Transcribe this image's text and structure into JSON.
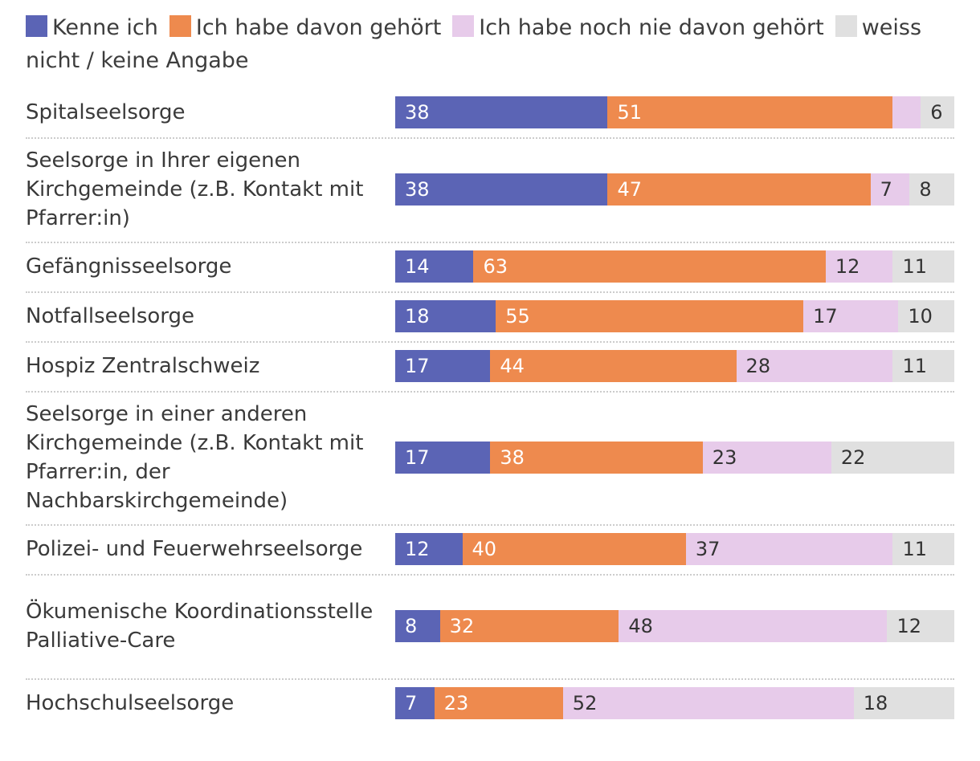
{
  "chart_data": {
    "type": "bar",
    "orientation": "horizontal",
    "stacked": true,
    "unit": "percent",
    "legend_position": "top",
    "legend": [
      {
        "name": "Kenne ich",
        "color": "#5b64b5"
      },
      {
        "name": "Ich habe davon gehört",
        "color": "#ee8a4e"
      },
      {
        "name": "Ich habe noch nie davon gehört",
        "color": "#e7cbea"
      },
      {
        "name": "weiss nicht / keine Angabe",
        "color": "#e0e0e0"
      }
    ],
    "categories": [
      "Spitalseelsorge",
      "Seelsorge in Ihrer eigenen Kirchgemeinde (z.B. Kontakt mit Pfarrer:in)",
      "Gefängnisseelsorge",
      "Notfallseelsorge",
      "Hospiz Zentralschweiz",
      "Seelsorge in einer anderen Kirchgemeinde (z.B. Kontakt mit Pfarrer:in, der Nachbarskirchgemeinde)",
      "Polizei- und Feuerwehrseelsorge",
      "Ökumenische Koordinationsstelle Palliative-Care",
      "Hochschulseelsorge"
    ],
    "series": [
      {
        "name": "Kenne ich",
        "values": [
          38,
          38,
          14,
          18,
          17,
          17,
          12,
          8,
          7
        ]
      },
      {
        "name": "Ich habe davon gehört",
        "values": [
          51,
          47,
          63,
          55,
          44,
          38,
          40,
          32,
          23
        ]
      },
      {
        "name": "Ich habe noch nie davon gehört",
        "values": [
          5,
          7,
          12,
          17,
          28,
          23,
          37,
          48,
          52
        ]
      },
      {
        "name": "weiss nicht / keine Angabe",
        "values": [
          6,
          8,
          11,
          10,
          11,
          22,
          11,
          12,
          18
        ]
      }
    ],
    "value_labels": [
      [
        "38",
        "51",
        "",
        "6"
      ],
      [
        "38",
        "47",
        "7",
        "8"
      ],
      [
        "14",
        "63",
        "12",
        "11"
      ],
      [
        "18",
        "55",
        "17",
        "10"
      ],
      [
        "17",
        "44",
        "28",
        "11"
      ],
      [
        "17",
        "38",
        "23",
        "22"
      ],
      [
        "12",
        "40",
        "37",
        "11"
      ],
      [
        "8",
        "32",
        "48",
        "12"
      ],
      [
        "7",
        "23",
        "52",
        "18"
      ]
    ],
    "label_colors": [
      "#ffffff",
      "#ffffff",
      "#333333",
      "#333333"
    ]
  }
}
